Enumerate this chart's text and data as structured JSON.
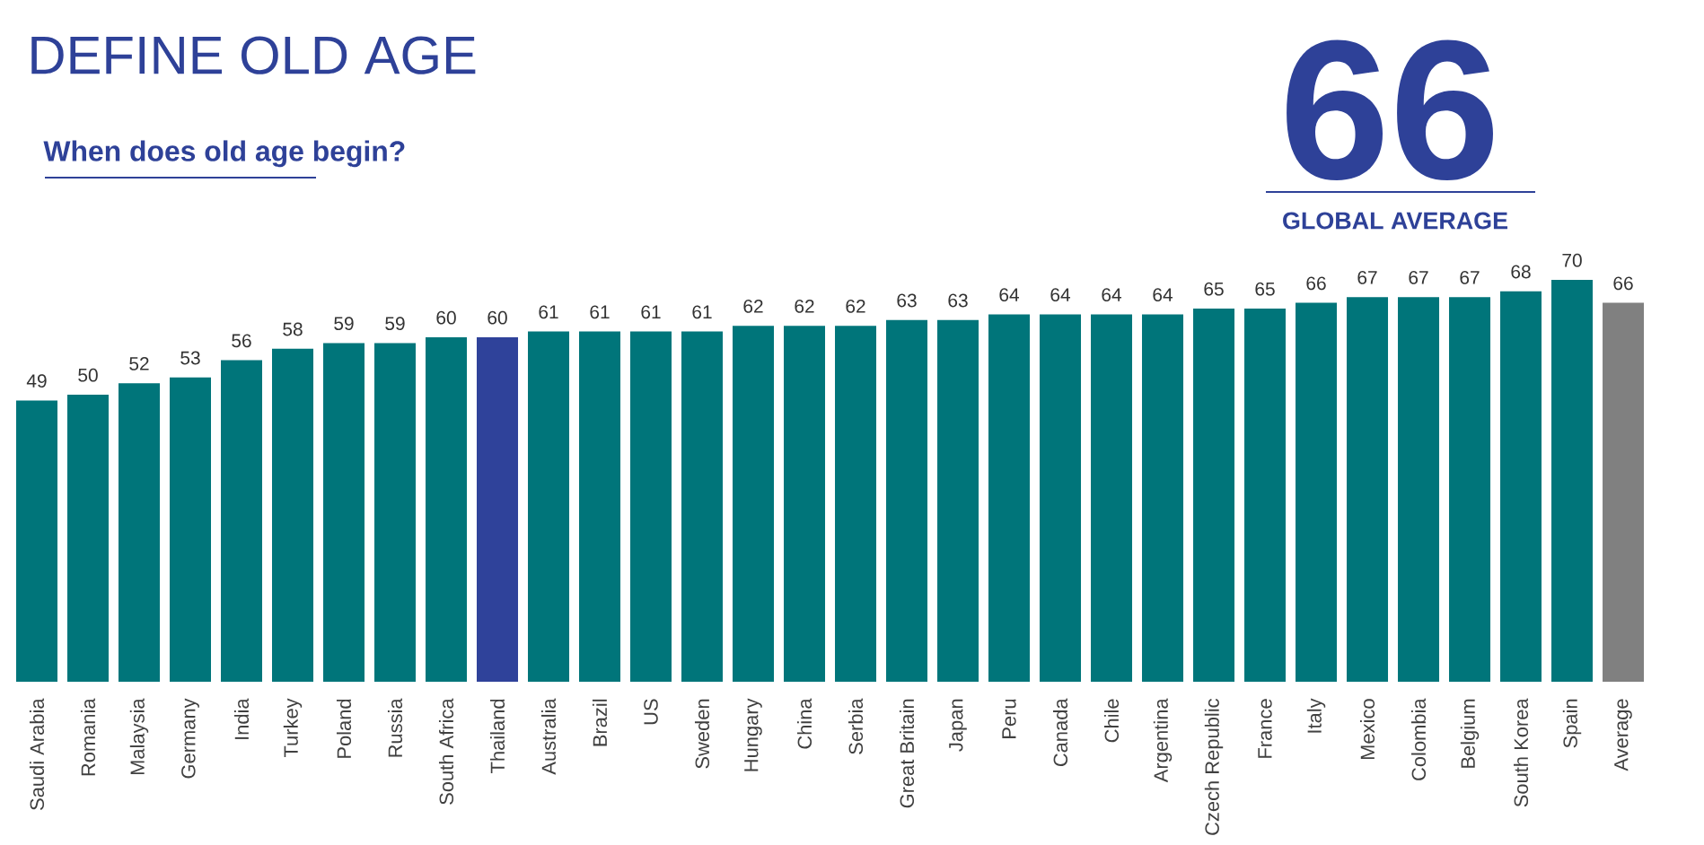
{
  "chart_data": {
    "type": "bar",
    "title": "DEFINE OLD AGE",
    "subtitle": "When does old age begin?",
    "annotations": [
      "66",
      "GLOBAL AVERAGE"
    ],
    "categories": [
      "Saudi Arabia",
      "Romania",
      "Malaysia",
      "Germany",
      "India",
      "Turkey",
      "Poland",
      "Russia",
      "South Africa",
      "Thailand",
      "Australia",
      "Brazil",
      "US",
      "Sweden",
      "Hungary",
      "China",
      "Serbia",
      "Great Britain",
      "Japan",
      "Peru",
      "Canada",
      "Chile",
      "Argentina",
      "Czech Republic",
      "France",
      "Italy",
      "Mexico",
      "Colombia",
      "Belgium",
      "South Korea",
      "Spain",
      "Average"
    ],
    "values": [
      49,
      50,
      52,
      53,
      56,
      58,
      59,
      59,
      60,
      60,
      61,
      61,
      61,
      61,
      62,
      62,
      62,
      63,
      63,
      64,
      64,
      64,
      64,
      65,
      65,
      66,
      67,
      67,
      67,
      68,
      70,
      66
    ],
    "colors": [
      "#00757a",
      "#00757a",
      "#00757a",
      "#00757a",
      "#00757a",
      "#00757a",
      "#00757a",
      "#00757a",
      "#00757a",
      "#2f429a",
      "#00757a",
      "#00757a",
      "#00757a",
      "#00757a",
      "#00757a",
      "#00757a",
      "#00757a",
      "#00757a",
      "#00757a",
      "#00757a",
      "#00757a",
      "#00757a",
      "#00757a",
      "#00757a",
      "#00757a",
      "#00757a",
      "#00757a",
      "#00757a",
      "#00757a",
      "#00757a",
      "#00757a",
      "#808080"
    ],
    "ylim": [
      0,
      70
    ],
    "data_labels": true,
    "tick_labels": "x"
  }
}
